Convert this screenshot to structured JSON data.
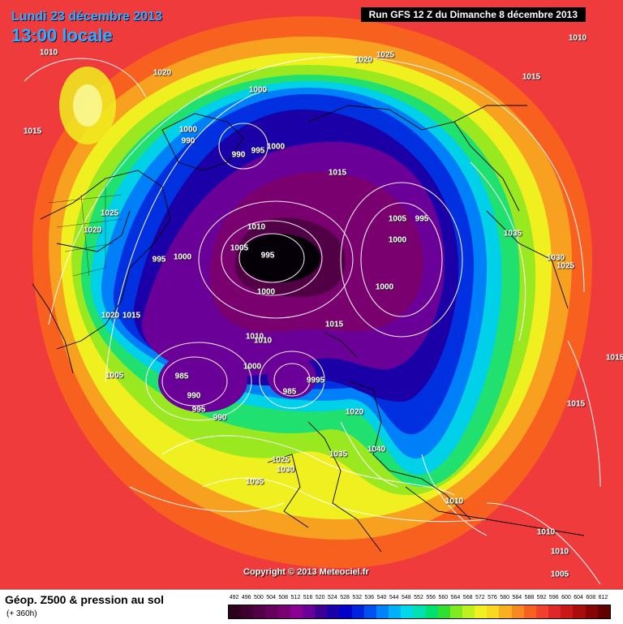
{
  "header": {
    "date_label": "Lundi 23 décembre 2013",
    "time_label": "13:00 locale",
    "run_label": "Run GFS 12 Z du Dimanche 8 décembre 2013"
  },
  "copyright": "Copyright © 2013 Meteociel.fr",
  "footer": {
    "title": "Géop. Z500 & pression au sol",
    "subtitle": "(+ 360h)"
  },
  "colors": {
    "background": "#ef3b3b",
    "pole_low": "#050007",
    "isobar": "#ffffff",
    "coast": "#000000"
  },
  "scale": [
    {
      "label": "492",
      "color": "#2b001f"
    },
    {
      "label": "496",
      "color": "#3f0030"
    },
    {
      "label": "500",
      "color": "#520045"
    },
    {
      "label": "504",
      "color": "#65005c"
    },
    {
      "label": "508",
      "color": "#780073"
    },
    {
      "label": "512",
      "color": "#8a0090"
    },
    {
      "label": "516",
      "color": "#6a0098"
    },
    {
      "label": "520",
      "color": "#3b0092"
    },
    {
      "label": "524",
      "color": "#1a00a6"
    },
    {
      "label": "528",
      "color": "#0000c8"
    },
    {
      "label": "532",
      "color": "#0022e0"
    },
    {
      "label": "536",
      "color": "#0050f0"
    },
    {
      "label": "540",
      "color": "#0082f8"
    },
    {
      "label": "544",
      "color": "#00b0f8"
    },
    {
      "label": "548",
      "color": "#00d8e8"
    },
    {
      "label": "552",
      "color": "#00e0b0"
    },
    {
      "label": "556",
      "color": "#00e070"
    },
    {
      "label": "560",
      "color": "#30e030"
    },
    {
      "label": "564",
      "color": "#80ea20"
    },
    {
      "label": "568",
      "color": "#c0f020"
    },
    {
      "label": "572",
      "color": "#f0f020"
    },
    {
      "label": "576",
      "color": "#f8d820"
    },
    {
      "label": "580",
      "color": "#f8b020"
    },
    {
      "label": "584",
      "color": "#f88820"
    },
    {
      "label": "588",
      "color": "#f86020"
    },
    {
      "label": "592",
      "color": "#f04030"
    },
    {
      "label": "596",
      "color": "#e02828"
    },
    {
      "label": "600",
      "color": "#c81818"
    },
    {
      "label": "604",
      "color": "#a80c0c"
    },
    {
      "label": "608",
      "color": "#880404"
    },
    {
      "label": "612",
      "color": "#600000"
    }
  ],
  "isobar_labels": [
    {
      "text": "1010"
    },
    {
      "text": "1020"
    },
    {
      "text": "1025"
    },
    {
      "text": "1015"
    },
    {
      "text": "1010"
    },
    {
      "text": "1020"
    },
    {
      "text": "1015"
    },
    {
      "text": "1000"
    },
    {
      "text": "1000"
    },
    {
      "text": "990"
    },
    {
      "text": "990"
    },
    {
      "text": "995"
    },
    {
      "text": "1000"
    },
    {
      "text": "1015"
    },
    {
      "text": "1025"
    },
    {
      "text": "1020"
    },
    {
      "text": "1010"
    },
    {
      "text": "1005"
    },
    {
      "text": "995"
    },
    {
      "text": "1000"
    },
    {
      "text": "995"
    },
    {
      "text": "1005"
    },
    {
      "text": "995"
    },
    {
      "text": "1000"
    },
    {
      "text": "1035"
    },
    {
      "text": "1030"
    },
    {
      "text": "1025"
    },
    {
      "text": "1000"
    },
    {
      "text": "1000"
    },
    {
      "text": "1020"
    },
    {
      "text": "1015"
    },
    {
      "text": "1015"
    },
    {
      "text": "1010"
    },
    {
      "text": "1010"
    },
    {
      "text": "1005"
    },
    {
      "text": "985"
    },
    {
      "text": "1000"
    },
    {
      "text": "985"
    },
    {
      "text": "9995"
    },
    {
      "text": "990"
    },
    {
      "text": "995"
    },
    {
      "text": "990"
    },
    {
      "text": "1020"
    },
    {
      "text": "1035"
    },
    {
      "text": "1040"
    },
    {
      "text": "1025"
    },
    {
      "text": "1030"
    },
    {
      "text": "1035"
    },
    {
      "text": "1015"
    },
    {
      "text": "1010"
    },
    {
      "text": "1010"
    },
    {
      "text": "1010"
    },
    {
      "text": "1005"
    },
    {
      "text": "1015"
    }
  ]
}
